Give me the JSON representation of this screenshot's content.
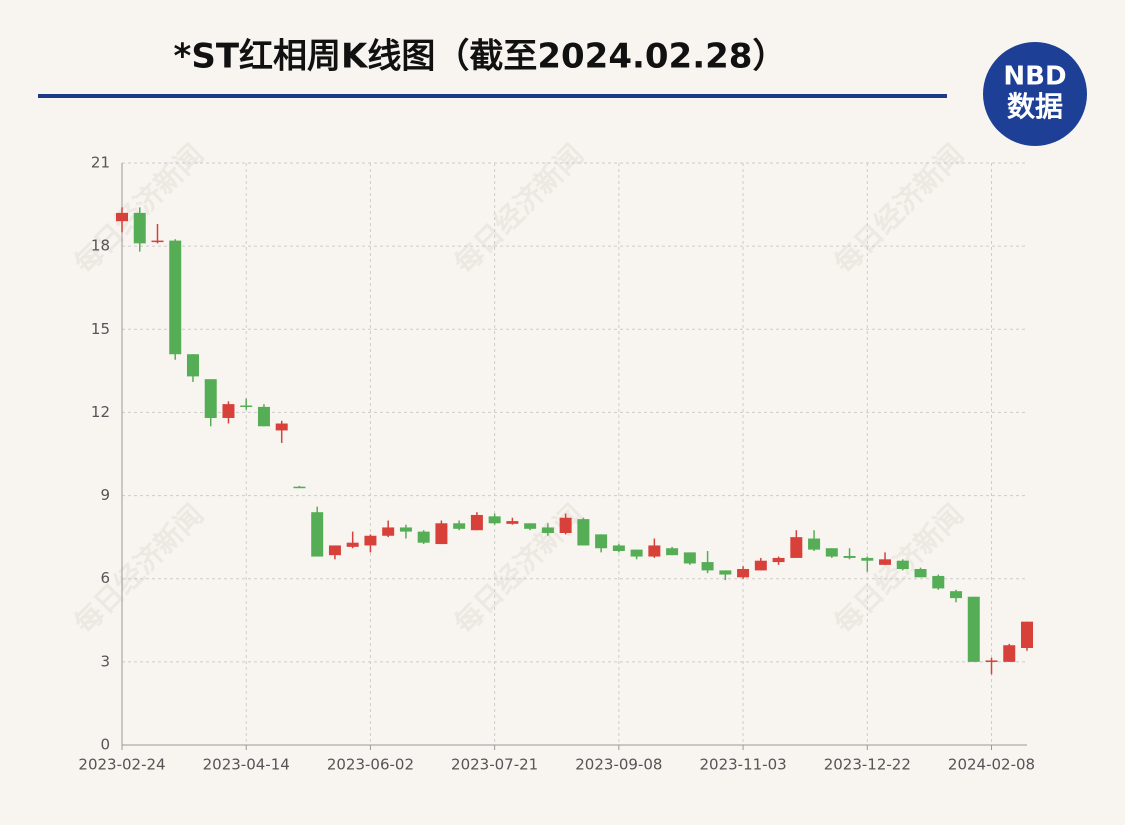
{
  "chart_data": {
    "type": "candlestick",
    "title": "*ST红相周K线图（截至2024.02.28）",
    "logo_text": [
      "NBD",
      "数据"
    ],
    "watermark": "每日经济新闻",
    "categories": [
      "2023-02-24",
      null,
      null,
      null,
      null,
      null,
      null,
      "2023-04-14",
      null,
      null,
      null,
      null,
      null,
      null,
      "2023-06-02",
      null,
      null,
      null,
      null,
      null,
      null,
      "2023-07-21",
      null,
      null,
      null,
      null,
      null,
      null,
      "2023-09-08",
      null,
      null,
      null,
      null,
      null,
      null,
      "2023-11-03",
      null,
      null,
      null,
      null,
      null,
      null,
      "2023-12-22",
      null,
      null,
      null,
      null,
      null,
      null,
      "2024-02-08",
      null,
      null
    ],
    "open": [
      18.9,
      19.2,
      18.15,
      18.2,
      14.1,
      13.2,
      11.8,
      12.25,
      12.2,
      11.35,
      9.32,
      8.4,
      6.85,
      7.15,
      7.2,
      7.55,
      7.85,
      7.7,
      7.25,
      8.0,
      7.75,
      8.25,
      7.98,
      8.0,
      7.85,
      7.65,
      8.15,
      7.6,
      7.2,
      7.05,
      6.8,
      7.1,
      6.95,
      6.6,
      6.3,
      6.05,
      6.3,
      6.6,
      6.75,
      7.45,
      7.1,
      6.82,
      6.75,
      6.5,
      6.65,
      6.35,
      6.1,
      5.55,
      5.35,
      3.0,
      3.0,
      3.5
    ],
    "high": [
      19.4,
      19.4,
      18.8,
      18.25,
      14.1,
      13.2,
      12.4,
      12.5,
      12.3,
      11.7,
      9.35,
      8.6,
      7.2,
      7.7,
      7.6,
      8.1,
      7.95,
      7.75,
      8.1,
      8.1,
      8.4,
      8.35,
      8.2,
      8.0,
      8.0,
      8.35,
      8.2,
      7.6,
      7.25,
      7.05,
      7.45,
      7.15,
      6.95,
      7.0,
      6.3,
      6.45,
      6.75,
      6.8,
      7.75,
      7.75,
      7.1,
      7.1,
      6.8,
      6.95,
      6.7,
      6.4,
      6.15,
      5.6,
      5.35,
      3.15,
      3.65,
      4.45
    ],
    "low": [
      18.5,
      17.8,
      18.1,
      13.9,
      13.1,
      11.5,
      11.6,
      12.1,
      11.5,
      10.9,
      9.3,
      6.8,
      6.7,
      7.1,
      6.95,
      7.5,
      7.45,
      7.25,
      7.25,
      7.75,
      7.75,
      7.95,
      7.95,
      7.75,
      7.55,
      7.6,
      7.2,
      6.95,
      6.95,
      6.7,
      6.75,
      6.85,
      6.5,
      6.2,
      5.95,
      6.0,
      6.3,
      6.5,
      6.75,
      7.0,
      6.75,
      6.7,
      6.25,
      6.5,
      6.3,
      6.05,
      5.6,
      5.15,
      3.0,
      2.55,
      3.0,
      3.4
    ],
    "close": [
      19.2,
      18.1,
      18.2,
      14.1,
      13.3,
      11.8,
      12.3,
      12.2,
      11.5,
      11.6,
      9.3,
      6.8,
      7.2,
      7.3,
      7.55,
      7.85,
      7.7,
      7.3,
      8.0,
      7.8,
      8.3,
      8.0,
      8.08,
      7.8,
      7.65,
      8.2,
      7.2,
      7.1,
      7.0,
      6.8,
      7.2,
      6.85,
      6.55,
      6.3,
      6.15,
      6.35,
      6.65,
      6.75,
      7.5,
      7.05,
      6.8,
      6.75,
      6.65,
      6.7,
      6.35,
      6.05,
      5.65,
      5.3,
      3.0,
      3.05,
      3.6,
      4.45
    ],
    "up_color": "#d8403a",
    "down_color": "#55ad55",
    "ylim": [
      0,
      21
    ],
    "yticks": [
      0,
      3,
      6,
      9,
      12,
      15,
      18,
      21
    ],
    "grid": true
  }
}
